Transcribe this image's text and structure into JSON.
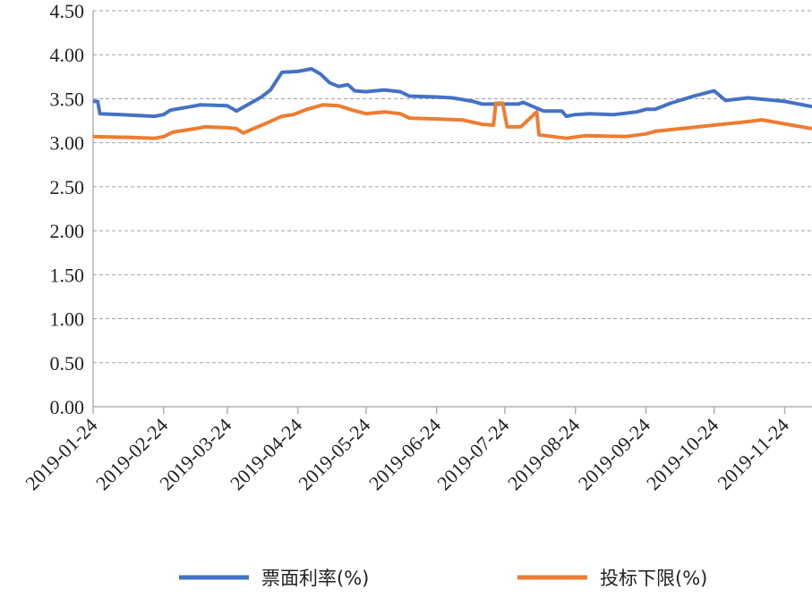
{
  "chart_data": {
    "type": "line",
    "xlim": [
      "2019-01-24",
      "2019-12-06"
    ],
    "xticks": [
      "2019-01-24",
      "2019-02-24",
      "2019-03-24",
      "2019-04-24",
      "2019-05-24",
      "2019-06-24",
      "2019-07-24",
      "2019-08-24",
      "2019-09-24",
      "2019-10-24",
      "2019-11-24"
    ],
    "ylim": [
      0,
      4.5
    ],
    "yticks": [
      {
        "value": 0,
        "label": "0.00"
      },
      {
        "value": 0.5,
        "label": "0.50"
      },
      {
        "value": 1,
        "label": "1.00"
      },
      {
        "value": 1.5,
        "label": "1.50"
      },
      {
        "value": 2,
        "label": "2.00"
      },
      {
        "value": 2.5,
        "label": "2.50"
      },
      {
        "value": 3,
        "label": "3.00"
      },
      {
        "value": 3.5,
        "label": "3.50"
      },
      {
        "value": 4,
        "label": "4.00"
      },
      {
        "value": 4.5,
        "label": "4.50"
      }
    ],
    "grid": true,
    "legend": "bottom",
    "series": [
      {
        "name": "票面利率(%)",
        "color": "#4472c4",
        "x": [
          "2019-01-24",
          "2019-01-26",
          "2019-01-27",
          "2019-02-20",
          "2019-02-24",
          "2019-02-27",
          "2019-03-10",
          "2019-03-12",
          "2019-03-24",
          "2019-03-28",
          "2019-04-08",
          "2019-04-12",
          "2019-04-17",
          "2019-04-24",
          "2019-04-30",
          "2019-05-04",
          "2019-05-08",
          "2019-05-12",
          "2019-05-16",
          "2019-05-19",
          "2019-05-24",
          "2019-06-01",
          "2019-06-08",
          "2019-06-12",
          "2019-06-24",
          "2019-07-01",
          "2019-07-10",
          "2019-07-14",
          "2019-07-24",
          "2019-07-30",
          "2019-08-01",
          "2019-08-10",
          "2019-08-18",
          "2019-08-20",
          "2019-08-24",
          "2019-08-30",
          "2019-09-10",
          "2019-09-20",
          "2019-09-24",
          "2019-09-28",
          "2019-10-05",
          "2019-10-15",
          "2019-10-24",
          "2019-10-29",
          "2019-11-08",
          "2019-11-24",
          "2019-12-06"
        ],
        "values": [
          3.47,
          3.47,
          3.33,
          3.3,
          3.32,
          3.37,
          3.42,
          3.43,
          3.42,
          3.36,
          3.52,
          3.6,
          3.8,
          3.81,
          3.84,
          3.78,
          3.68,
          3.64,
          3.66,
          3.59,
          3.58,
          3.6,
          3.58,
          3.53,
          3.52,
          3.51,
          3.47,
          3.44,
          3.44,
          3.44,
          3.46,
          3.36,
          3.36,
          3.3,
          3.32,
          3.33,
          3.32,
          3.35,
          3.38,
          3.38,
          3.45,
          3.53,
          3.59,
          3.48,
          3.51,
          3.47,
          3.41
        ]
      },
      {
        "name": "投标下限(%)",
        "color": "#ed7d31",
        "x": [
          "2019-01-24",
          "2019-02-10",
          "2019-02-20",
          "2019-02-24",
          "2019-02-28",
          "2019-03-10",
          "2019-03-14",
          "2019-03-24",
          "2019-03-28",
          "2019-03-31",
          "2019-04-10",
          "2019-04-17",
          "2019-04-22",
          "2019-04-28",
          "2019-05-05",
          "2019-05-12",
          "2019-05-18",
          "2019-05-24",
          "2019-06-01",
          "2019-06-08",
          "2019-06-12",
          "2019-06-24",
          "2019-07-05",
          "2019-07-14",
          "2019-07-19",
          "2019-07-20",
          "2019-07-23",
          "2019-07-25",
          "2019-07-31",
          "2019-08-07",
          "2019-08-08",
          "2019-08-20",
          "2019-08-28",
          "2019-09-15",
          "2019-09-24",
          "2019-09-28",
          "2019-10-24",
          "2019-11-08",
          "2019-11-14",
          "2019-12-06"
        ],
        "values": [
          3.07,
          3.06,
          3.05,
          3.07,
          3.12,
          3.16,
          3.18,
          3.17,
          3.16,
          3.11,
          3.22,
          3.3,
          3.32,
          3.38,
          3.43,
          3.42,
          3.37,
          3.33,
          3.35,
          3.33,
          3.28,
          3.27,
          3.26,
          3.21,
          3.2,
          3.45,
          3.45,
          3.18,
          3.18,
          3.35,
          3.09,
          3.05,
          3.08,
          3.07,
          3.1,
          3.13,
          3.2,
          3.24,
          3.26,
          3.16
        ]
      }
    ]
  }
}
